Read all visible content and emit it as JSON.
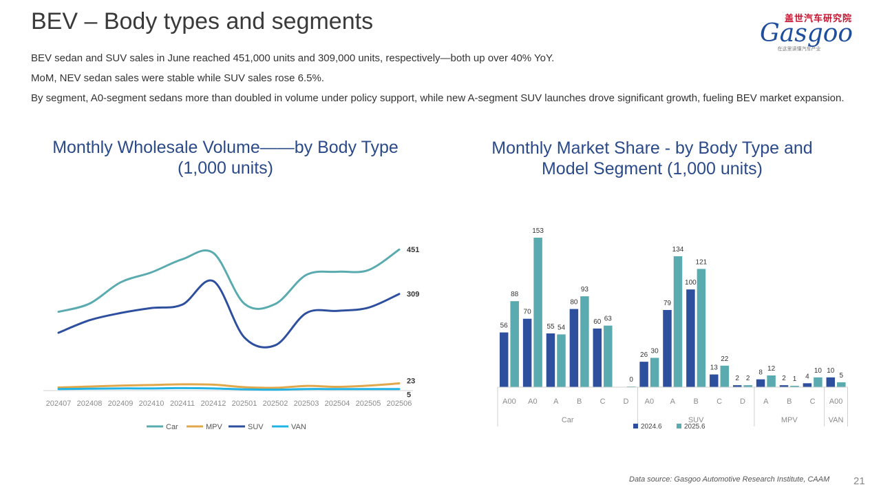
{
  "page": {
    "title": "BEV – Body types and segments",
    "paragraphs": [
      "BEV sedan and SUV sales in June reached 451,000 units and 309,000 units, respectively—both up over 40% YoY.",
      "MoM, NEV sedan sales were stable while SUV sales rose 6.5%.",
      "By segment, A0-segment sedans more than doubled in volume under policy support, while new A-segment SUV launches drove significant growth, fueling BEV market expansion."
    ],
    "source": "Data source: Gasgoo Automotive Research Institute, CAAM",
    "page_number": "21"
  },
  "logo": {
    "cn": "盖世汽车研究院",
    "en": "Gasgoo",
    "tagline": "在这里读懂汽车产业"
  },
  "colors": {
    "car": "#5aabb0",
    "mpv": "#e0a84a",
    "suv": "#2d4f9e",
    "van": "#1fb3e6",
    "bar_2024": "#2d4f9e",
    "bar_2025": "#5aabb0"
  },
  "chart_data": [
    {
      "type": "line",
      "title": "Monthly Wholesale Volume——by Body Type (1,000 units)",
      "x": [
        "202407",
        "202408",
        "202409",
        "202410",
        "202411",
        "202412",
        "202501",
        "202502",
        "202503",
        "202504",
        "202505",
        "202506"
      ],
      "ylim": [
        0,
        500
      ],
      "grid": false,
      "legend_position": "bottom",
      "series": [
        {
          "name": "Car",
          "values": [
            252,
            278,
            346,
            378,
            420,
            440,
            278,
            277,
            370,
            380,
            385,
            451
          ],
          "end_label": "451"
        },
        {
          "name": "MPV",
          "values": [
            10,
            13,
            16,
            18,
            20,
            19,
            11,
            9,
            15,
            12,
            16,
            23
          ],
          "end_label": "23"
        },
        {
          "name": "SUV",
          "values": [
            185,
            225,
            248,
            264,
            275,
            350,
            170,
            145,
            248,
            255,
            265,
            309
          ],
          "end_label": "309"
        },
        {
          "name": "VAN",
          "values": [
            5,
            6,
            7,
            7,
            8,
            7,
            4,
            3,
            5,
            5,
            5,
            5
          ],
          "end_label": "5"
        }
      ]
    },
    {
      "type": "bar",
      "title": "Monthly Market Share - by Body Type and Model Segment (1,000 units)",
      "legend_position": "bottom",
      "series_names": [
        "2024.6",
        "2025.6"
      ],
      "groups": [
        {
          "name": "Car",
          "categories": [
            {
              "label": "A00",
              "values": [
                56,
                88
              ]
            },
            {
              "label": "A0",
              "values": [
                70,
                153
              ]
            },
            {
              "label": "A",
              "values": [
                55,
                54
              ]
            },
            {
              "label": "B",
              "values": [
                80,
                93
              ]
            },
            {
              "label": "C",
              "values": [
                60,
                63
              ]
            },
            {
              "label": "D",
              "values": [
                null,
                0
              ]
            }
          ]
        },
        {
          "name": "SUV",
          "categories": [
            {
              "label": "A0",
              "values": [
                26,
                30
              ]
            },
            {
              "label": "A",
              "values": [
                79,
                134
              ]
            },
            {
              "label": "B",
              "values": [
                100,
                121
              ]
            },
            {
              "label": "C",
              "values": [
                13,
                22
              ]
            },
            {
              "label": "D",
              "values": [
                2,
                2
              ]
            }
          ]
        },
        {
          "name": "MPV",
          "categories": [
            {
              "label": "A",
              "values": [
                8,
                12
              ]
            },
            {
              "label": "B",
              "values": [
                2,
                1
              ]
            },
            {
              "label": "C",
              "values": [
                4,
                10
              ]
            }
          ]
        },
        {
          "name": "VAN",
          "categories": [
            {
              "label": "A00",
              "values": [
                10,
                5
              ]
            }
          ]
        }
      ]
    }
  ]
}
